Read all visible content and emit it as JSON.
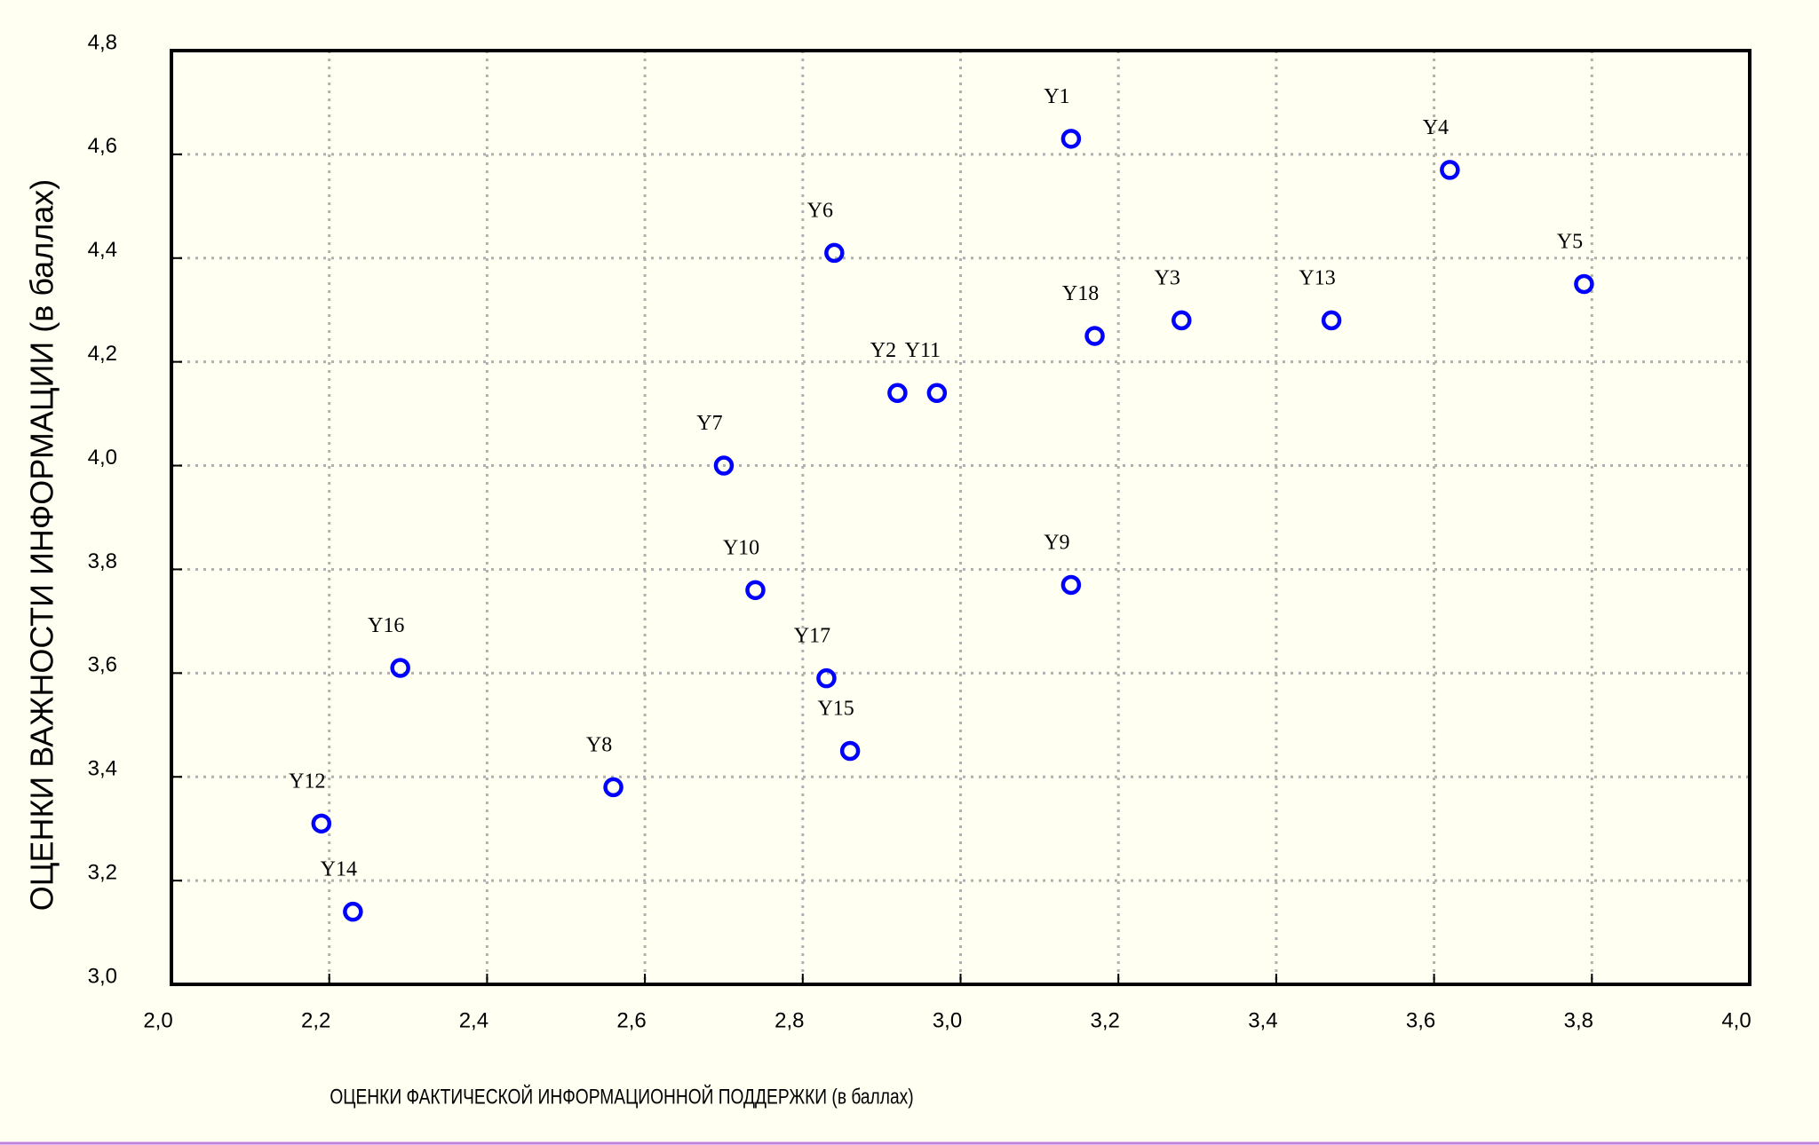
{
  "chart_data": {
    "type": "scatter",
    "x_label": "ОЦЕНКИ ФАКТИЧЕСКОЙ ИНФОРМАЦИОННОЙ ПОДДЕРЖКИ (в баллах)",
    "y_label": "ОЦЕНКИ ВАЖНОСТИ ИНФОРМАЦИИ (в баллах)",
    "xlim": [
      2.0,
      4.0
    ],
    "ylim": [
      3.0,
      4.8
    ],
    "xticks": [
      {
        "value": 2.0,
        "label": "2,0"
      },
      {
        "value": 2.2,
        "label": "2,2"
      },
      {
        "value": 2.4,
        "label": "2,4"
      },
      {
        "value": 2.6,
        "label": "2,6"
      },
      {
        "value": 2.8,
        "label": "2,8"
      },
      {
        "value": 3.0,
        "label": "3,0"
      },
      {
        "value": 3.2,
        "label": "3,2"
      },
      {
        "value": 3.4,
        "label": "3,4"
      },
      {
        "value": 3.6,
        "label": "3,6"
      },
      {
        "value": 3.8,
        "label": "3,8"
      },
      {
        "value": 4.0,
        "label": "4,0"
      }
    ],
    "yticks": [
      {
        "value": 3.0,
        "label": "3,0"
      },
      {
        "value": 3.2,
        "label": "3,2"
      },
      {
        "value": 3.4,
        "label": "3,4"
      },
      {
        "value": 3.6,
        "label": "3,6"
      },
      {
        "value": 3.8,
        "label": "3,8"
      },
      {
        "value": 4.0,
        "label": "4,0"
      },
      {
        "value": 4.2,
        "label": "4,2"
      },
      {
        "value": 4.4,
        "label": "4,4"
      },
      {
        "value": 4.6,
        "label": "4,6"
      },
      {
        "value": 4.8,
        "label": "4,8"
      }
    ],
    "grid": true,
    "series": [
      {
        "color": "#0000ff",
        "labels": [
          "Y1",
          "Y4",
          "Y5",
          "Y6",
          "Y18",
          "Y3",
          "Y13",
          "Y2",
          "Y11",
          "Y7",
          "Y10",
          "Y9",
          "Y16",
          "Y17",
          "Y15",
          "Y8",
          "Y12",
          "Y14"
        ],
        "x": [
          3.14,
          3.62,
          3.79,
          2.84,
          3.17,
          3.28,
          3.47,
          2.92,
          2.97,
          2.7,
          2.74,
          3.14,
          2.29,
          2.83,
          2.86,
          2.56,
          2.19,
          2.23
        ],
        "values": [
          4.63,
          4.57,
          4.35,
          4.41,
          4.25,
          4.28,
          4.28,
          4.14,
          4.14,
          4.0,
          3.76,
          3.77,
          3.61,
          3.59,
          3.45,
          3.38,
          3.31,
          3.14
        ]
      }
    ]
  }
}
